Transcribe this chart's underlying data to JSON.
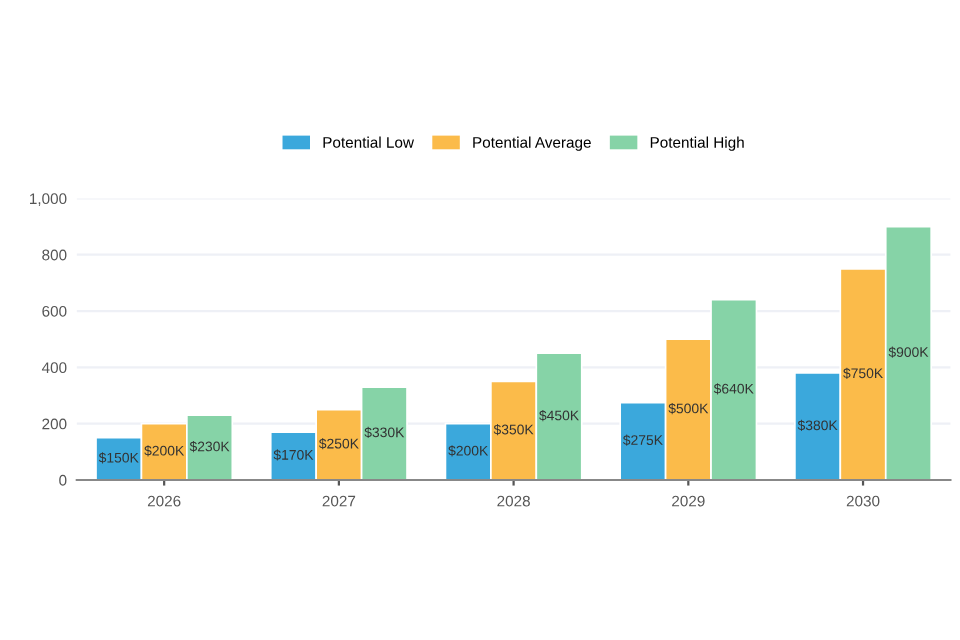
{
  "chart_data": {
    "type": "bar",
    "categories": [
      "2026",
      "2027",
      "2028",
      "2029",
      "2030"
    ],
    "series": [
      {
        "name": "Potential Low",
        "color": "#3ba8dc",
        "values": [
          150,
          170,
          200,
          275,
          380
        ],
        "value_labels": [
          "$150K",
          "$170K",
          "$200K",
          "$275K",
          "$380K"
        ]
      },
      {
        "name": "Potential Average",
        "color": "#fbbb4a",
        "values": [
          200,
          250,
          350,
          500,
          750
        ],
        "value_labels": [
          "$200K",
          "$250K",
          "$350K",
          "$500K",
          "$750K"
        ]
      },
      {
        "name": "Potential High",
        "color": "#86d3a7",
        "values": [
          230,
          330,
          450,
          640,
          900
        ],
        "value_labels": [
          "$230K",
          "$330K",
          "$450K",
          "$640K",
          "$900K"
        ]
      }
    ],
    "ylim": [
      0,
      1000
    ],
    "yticks": [
      0,
      200,
      400,
      600,
      800,
      {
        "value": 1000,
        "label": "1,000"
      }
    ],
    "grid": "y",
    "legend": "top"
  }
}
